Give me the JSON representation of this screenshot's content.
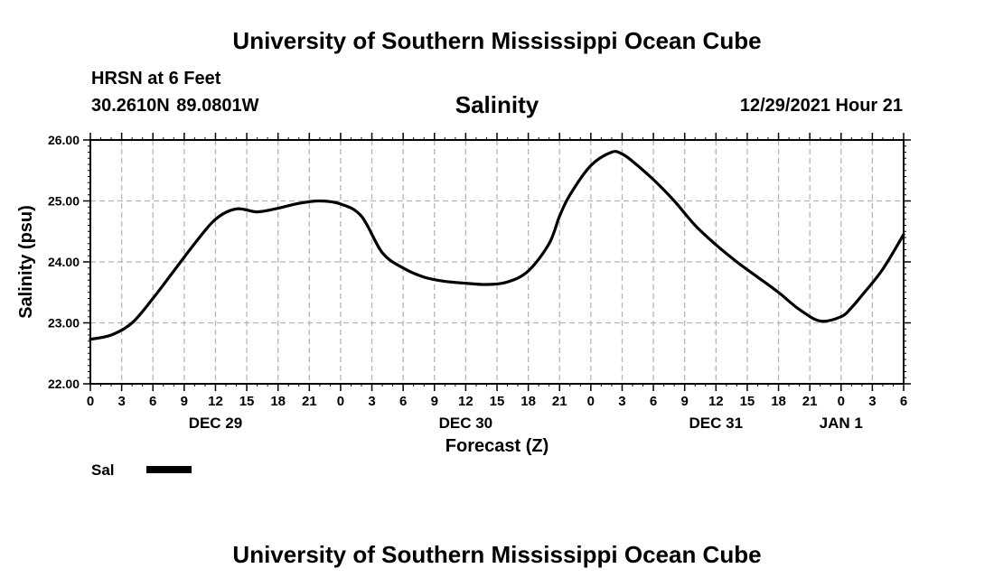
{
  "header": {
    "org_title": "University of Southern Mississippi Ocean Cube",
    "station": "HRSN at 6 Feet",
    "coords": "30.2610N  89.0801W",
    "chart_title": "Salinity",
    "issued": "12/29/2021 Hour 21"
  },
  "footer": {
    "org_title": "University of Southern Mississippi Ocean Cube"
  },
  "chart_data": {
    "type": "line",
    "title": "Salinity",
    "xlabel": "Forecast (Z)",
    "ylabel": "Salinity (psu)",
    "ylim": [
      22.0,
      26.0
    ],
    "yticks": [
      "22.00",
      "23.00",
      "24.00",
      "25.00",
      "26.00"
    ],
    "xticks": [
      "0",
      "3",
      "6",
      "9",
      "12",
      "15",
      "18",
      "21",
      "0",
      "3",
      "6",
      "9",
      "12",
      "15",
      "18",
      "21",
      "0",
      "3",
      "6",
      "9",
      "12",
      "15",
      "18",
      "21",
      "0",
      "3",
      "6"
    ],
    "day_labels": [
      "DEC 29",
      "DEC 30",
      "DEC 31",
      "JAN 1"
    ],
    "x_unit": "forecast hour from 2021-12-29 00Z",
    "xlim": [
      0,
      78
    ],
    "grid": true,
    "legend_position": "bottom-left",
    "color": "#000000",
    "series": [
      {
        "name": "Sal",
        "x": [
          0,
          2,
          4,
          6,
          8,
          10,
          12,
          14,
          16,
          18,
          20,
          22,
          24,
          26,
          28,
          30,
          32,
          34,
          36,
          38,
          40,
          42,
          44,
          45,
          46,
          48,
          50,
          51,
          52,
          54,
          56,
          58,
          60,
          62,
          64,
          66,
          68,
          70,
          72,
          73,
          74,
          76,
          78
        ],
        "values": [
          22.73,
          22.8,
          23.0,
          23.4,
          23.85,
          24.3,
          24.7,
          24.87,
          24.82,
          24.88,
          24.96,
          25.0,
          24.95,
          24.75,
          24.15,
          23.9,
          23.75,
          23.68,
          23.65,
          23.63,
          23.67,
          23.85,
          24.3,
          24.75,
          25.1,
          25.58,
          25.8,
          25.77,
          25.65,
          25.35,
          25.0,
          24.6,
          24.28,
          24.0,
          23.75,
          23.5,
          23.22,
          23.03,
          23.1,
          23.25,
          23.45,
          23.88,
          24.45
        ]
      }
    ]
  }
}
